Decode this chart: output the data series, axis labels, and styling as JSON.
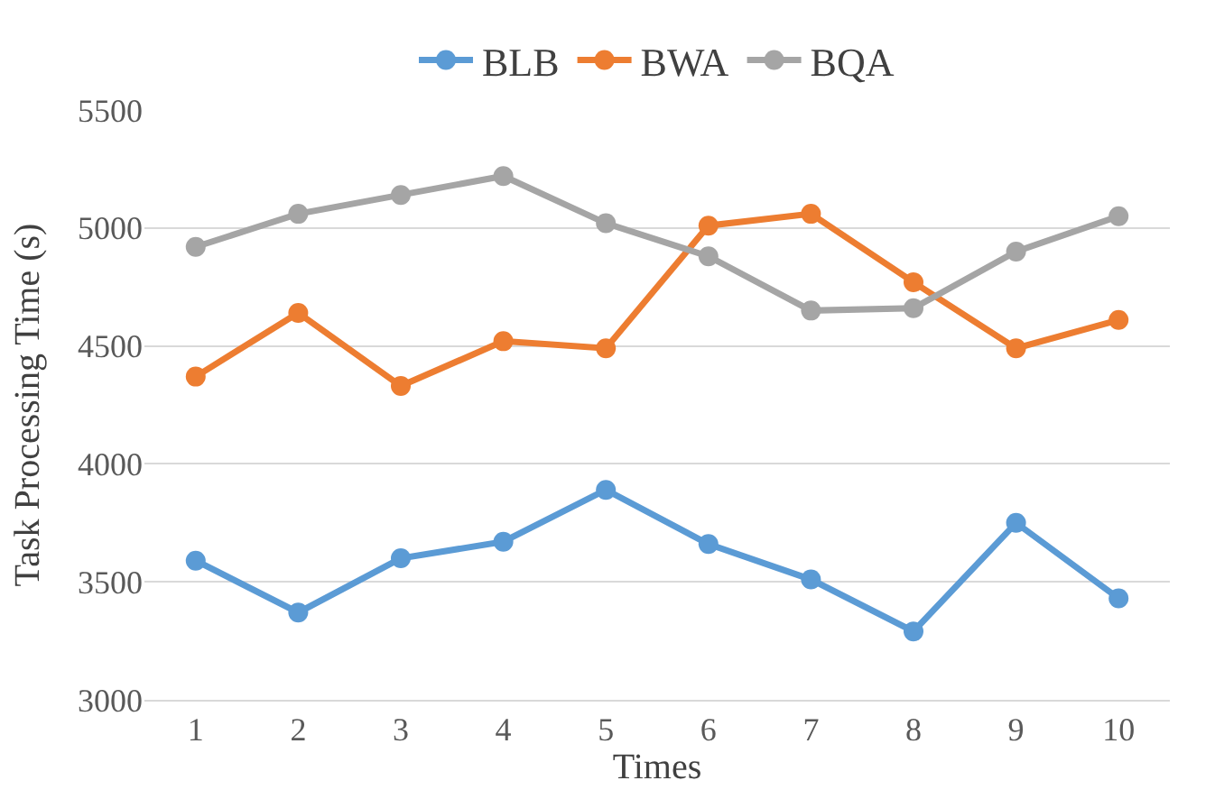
{
  "chart_data": {
    "type": "line",
    "xlabel": "Times",
    "ylabel": "Task Processing Time (s)",
    "categories": [
      "1",
      "2",
      "3",
      "4",
      "5",
      "6",
      "7",
      "8",
      "9",
      "10"
    ],
    "series": [
      {
        "name": "BLB",
        "color": "#5b9bd5",
        "values": [
          3590,
          3370,
          3600,
          3670,
          3890,
          3660,
          3510,
          3290,
          3750,
          3430
        ]
      },
      {
        "name": "BWA",
        "color": "#ed7d31",
        "values": [
          4370,
          4640,
          4330,
          4520,
          4490,
          5010,
          5060,
          4770,
          4490,
          4610
        ]
      },
      {
        "name": "BQA",
        "color": "#a5a5a5",
        "values": [
          4920,
          5060,
          5140,
          5220,
          5020,
          4880,
          4650,
          4660,
          4900,
          5050
        ]
      }
    ],
    "ylim": [
      3000,
      5500
    ],
    "yticks": [
      3000,
      3500,
      4000,
      4500,
      5000,
      5500
    ],
    "grid": "y",
    "legend": "top",
    "marker": "circle",
    "line_style": "solid"
  }
}
